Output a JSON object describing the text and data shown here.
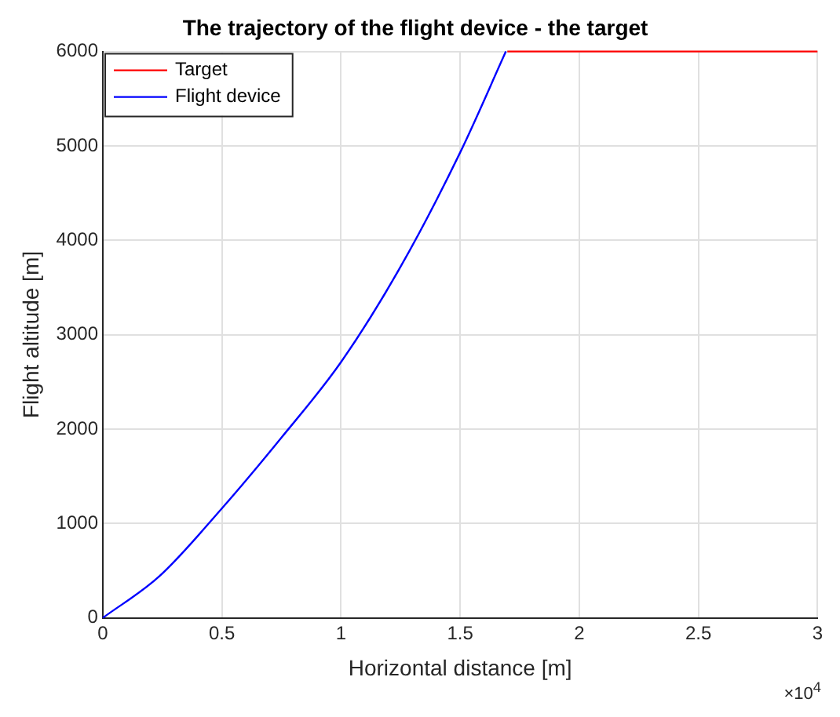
{
  "chart_data": {
    "type": "line",
    "title": "The trajectory of the flight device - the target",
    "xlabel": "Horizontal distance [m]",
    "ylabel": "Flight altitude [m]",
    "series": [
      {
        "name": "Target",
        "color": "#ff0000",
        "x": [
          1.698,
          3
        ],
        "values": [
          6000,
          6000
        ]
      },
      {
        "name": "Flight device",
        "color": "#0000ff",
        "x": [
          0,
          0.237,
          0.5,
          0.75,
          1,
          1.25,
          1.5,
          1.692
        ],
        "values": [
          0,
          440,
          1160,
          1910,
          2710,
          3720,
          4930,
          6000
        ]
      }
    ],
    "xlim": [
      0,
      3
    ],
    "xticks": [
      0,
      0.5,
      1,
      1.5,
      2,
      2.5,
      3
    ],
    "ylim": [
      0,
      6000
    ],
    "yticks": [
      0,
      1000,
      2000,
      3000,
      4000,
      5000,
      6000
    ],
    "annotations": [
      "×10$^{4}$"
    ],
    "grid": true,
    "legend": "top left",
    "marker": "none",
    "line_style": "solid"
  }
}
